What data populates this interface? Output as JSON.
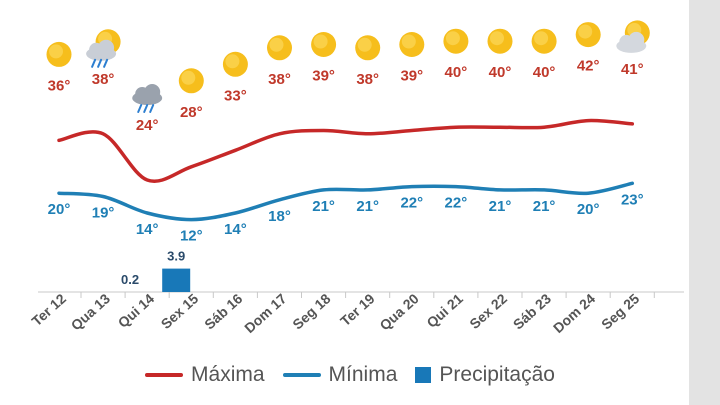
{
  "chart_data": {
    "type": "line",
    "categories": [
      "Ter 12",
      "Qua 13",
      "Qui 14",
      "Sex 15",
      "Sáb 16",
      "Dom 17",
      "Seg 18",
      "Ter 19",
      "Qua 20",
      "Qui 21",
      "Sex 22",
      "Sáb 23",
      "Dom 24",
      "Seg 25"
    ],
    "series": [
      {
        "name": "Máxima",
        "type": "line",
        "color": "#c62828",
        "values": [
          36,
          38,
          24,
          28,
          33,
          38,
          39,
          38,
          39,
          40,
          40,
          40,
          42,
          41
        ],
        "labels": [
          "36°",
          "38°",
          "24°",
          "28°",
          "33°",
          "38°",
          "39°",
          "38°",
          "39°",
          "40°",
          "40°",
          "40°",
          "42°",
          "41°"
        ]
      },
      {
        "name": "Mínima",
        "type": "line",
        "color": "#1f7fb5",
        "values": [
          20,
          19,
          14,
          12,
          14,
          18,
          21,
          21,
          22,
          22,
          21,
          21,
          20,
          23
        ],
        "labels": [
          "20°",
          "19°",
          "14°",
          "12°",
          "14°",
          "18°",
          "21°",
          "21°",
          "22°",
          "22°",
          "21°",
          "21°",
          "20°",
          "23°"
        ]
      },
      {
        "name": "Precipitação",
        "type": "bar",
        "color": "#1878b8",
        "values": [
          0,
          0.2,
          3.9,
          0,
          0,
          0,
          0,
          0,
          0,
          0,
          0,
          0,
          0,
          0
        ],
        "labels": [
          "",
          "0.2",
          "3.9",
          "",
          "",
          "",
          "",
          "",
          "",
          "",
          "",
          "",
          "",
          ""
        ]
      }
    ],
    "icons": [
      "sun-icon",
      "sun-rain-cloud-icon",
      "storm-cloud-icon",
      "sun-icon",
      "sun-icon",
      "sun-icon",
      "sun-icon",
      "sun-icon",
      "sun-icon",
      "sun-icon",
      "sun-icon",
      "sun-icon",
      "sun-icon",
      "sun-cloud-icon"
    ],
    "label_colors": {
      "max": "#c0392b",
      "min": "#1f7fb5",
      "precip": "#2a4a6a",
      "axis": "#555555"
    },
    "grid": false,
    "legend_position": "bottom"
  },
  "legend": [
    {
      "label": "Máxima",
      "color": "#c62828",
      "kind": "line"
    },
    {
      "label": "Mínima",
      "color": "#1f7fb5",
      "kind": "line"
    },
    {
      "label": "Precipitação",
      "color": "#1878b8",
      "kind": "box"
    }
  ]
}
